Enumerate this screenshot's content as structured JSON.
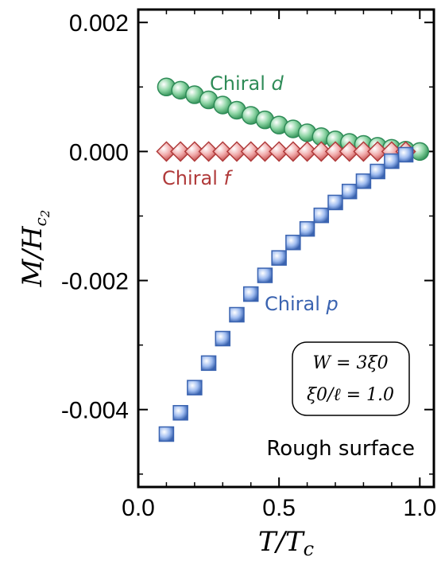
{
  "chart_data": {
    "type": "scatter",
    "xlabel": "T/Tc",
    "ylabel": "M/Hc2",
    "xlim": [
      0.0,
      1.05
    ],
    "ylim": [
      -0.0052,
      0.0022
    ],
    "x_ticks": [
      0.0,
      0.5,
      1.0
    ],
    "x_tick_labels": [
      "0.0",
      "0.5",
      "1.0"
    ],
    "y_ticks": [
      0.002,
      0.0,
      -0.002,
      -0.004
    ],
    "y_tick_labels": [
      "0.002",
      "0.000",
      "-0.002",
      "-0.004"
    ],
    "grid": false,
    "series": [
      {
        "name": "Chiral d",
        "marker": "circle",
        "color": "#2e8b57",
        "fill": "#8fd6a6",
        "x": [
          0.1,
          0.15,
          0.2,
          0.25,
          0.3,
          0.35,
          0.4,
          0.45,
          0.5,
          0.55,
          0.6,
          0.65,
          0.7,
          0.75,
          0.8,
          0.85,
          0.9,
          0.95,
          1.0
        ],
        "y": [
          0.001,
          0.00095,
          0.00088,
          0.0008,
          0.00072,
          0.00064,
          0.00056,
          0.00049,
          0.00041,
          0.00035,
          0.00029,
          0.00023,
          0.00018,
          0.00014,
          0.00011,
          8e-05,
          5e-05,
          2e-05,
          0.0
        ]
      },
      {
        "name": "Chiral f",
        "marker": "diamond",
        "color": "#b03a3a",
        "fill": "#f0a8a8",
        "x": [
          0.1,
          0.15,
          0.2,
          0.25,
          0.3,
          0.35,
          0.4,
          0.45,
          0.5,
          0.55,
          0.6,
          0.65,
          0.7,
          0.75,
          0.8,
          0.85,
          0.9,
          0.95
        ],
        "y": [
          0.0,
          0.0,
          0.0,
          0.0,
          0.0,
          0.0,
          0.0,
          0.0,
          0.0,
          0.0,
          0.0,
          0.0,
          0.0,
          0.0,
          0.0,
          0.0,
          0.0,
          0.0
        ]
      },
      {
        "name": "Chiral p",
        "marker": "square",
        "color": "#3a63b0",
        "fill": "#9fbcf0",
        "x": [
          0.1,
          0.15,
          0.2,
          0.25,
          0.3,
          0.35,
          0.4,
          0.45,
          0.5,
          0.55,
          0.6,
          0.65,
          0.7,
          0.75,
          0.8,
          0.85,
          0.9,
          0.95
        ],
        "y": [
          -0.00438,
          -0.00405,
          -0.00366,
          -0.00328,
          -0.0029,
          -0.00253,
          -0.00221,
          -0.00192,
          -0.00165,
          -0.00141,
          -0.0012,
          -0.00099,
          -0.00079,
          -0.00062,
          -0.00046,
          -0.00031,
          -0.00015,
          -5e-05
        ]
      }
    ],
    "annotations": {
      "series_labels": [
        {
          "prefix": "Chiral ",
          "var": "d",
          "color": "#2e8b57"
        },
        {
          "prefix": "Chiral ",
          "var": "f",
          "color": "#b03a3a"
        },
        {
          "prefix": "Chiral ",
          "var": "p",
          "color": "#3a63b0"
        }
      ],
      "info_box": [
        "W = 3ξ0",
        "ξ0/ℓ = 1.0"
      ],
      "surface_label": "Rough surface"
    }
  }
}
